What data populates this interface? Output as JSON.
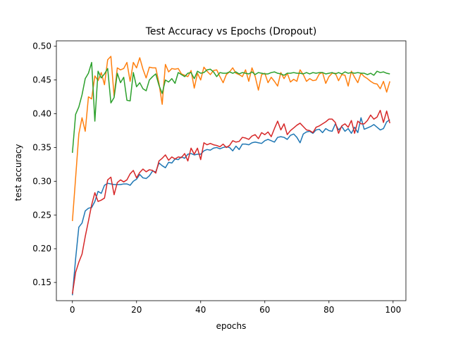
{
  "chart_data": {
    "type": "line",
    "title": "Test Accuracy vs Epochs (Dropout)",
    "xlabel": "epochs",
    "ylabel": "test accuracy",
    "xlim": [
      -5,
      104
    ],
    "ylim": [
      0.123,
      0.508
    ],
    "xticks": [
      0,
      20,
      40,
      60,
      80,
      100
    ],
    "yticks": [
      0.15,
      0.2,
      0.25,
      0.3,
      0.35,
      0.4,
      0.45,
      0.5
    ],
    "ytick_labels": [
      "0.15",
      "0.20",
      "0.25",
      "0.30",
      "0.35",
      "0.40",
      "0.45",
      "0.50"
    ],
    "grid": false,
    "legend": "none",
    "series": [
      {
        "color": "#1f77b4",
        "values": [
          0.131,
          0.185,
          0.232,
          0.238,
          0.256,
          0.26,
          0.261,
          0.27,
          0.285,
          0.282,
          0.294,
          0.297,
          0.296,
          0.295,
          0.295,
          0.295,
          0.296,
          0.296,
          0.294,
          0.3,
          0.303,
          0.31,
          0.305,
          0.304,
          0.308,
          0.315,
          0.314,
          0.327,
          0.323,
          0.32,
          0.328,
          0.327,
          0.333,
          0.332,
          0.336,
          0.334,
          0.34,
          0.341,
          0.339,
          0.34,
          0.34,
          0.345,
          0.347,
          0.346,
          0.349,
          0.35,
          0.348,
          0.35,
          0.351,
          0.35,
          0.345,
          0.352,
          0.347,
          0.355,
          0.355,
          0.354,
          0.357,
          0.358,
          0.357,
          0.356,
          0.36,
          0.362,
          0.36,
          0.358,
          0.365,
          0.366,
          0.365,
          0.362,
          0.368,
          0.37,
          0.365,
          0.357,
          0.37,
          0.373,
          0.374,
          0.371,
          0.376,
          0.377,
          0.372,
          0.378,
          0.375,
          0.374,
          0.385,
          0.376,
          0.381,
          0.374,
          0.378,
          0.371,
          0.38,
          0.372,
          0.394,
          0.377,
          0.379,
          0.381,
          0.384,
          0.38,
          0.376,
          0.378,
          0.388,
          0.391
        ]
      },
      {
        "color": "#ff7f0e",
        "values": [
          0.241,
          0.305,
          0.37,
          0.394,
          0.374,
          0.425,
          0.422,
          0.456,
          0.449,
          0.461,
          0.443,
          0.48,
          0.485,
          0.426,
          0.468,
          0.465,
          0.467,
          0.476,
          0.448,
          0.476,
          0.468,
          0.483,
          0.466,
          0.453,
          0.469,
          0.468,
          0.468,
          0.445,
          0.414,
          0.473,
          0.462,
          0.467,
          0.466,
          0.467,
          0.459,
          0.457,
          0.455,
          0.464,
          0.438,
          0.46,
          0.45,
          0.469,
          0.463,
          0.458,
          0.464,
          0.465,
          0.455,
          0.446,
          0.458,
          0.462,
          0.468,
          0.46,
          0.458,
          0.455,
          0.465,
          0.448,
          0.468,
          0.455,
          0.435,
          0.458,
          0.46,
          0.446,
          0.454,
          0.448,
          0.441,
          0.461,
          0.452,
          0.46,
          0.447,
          0.451,
          0.448,
          0.465,
          0.458,
          0.448,
          0.452,
          0.449,
          0.45,
          0.459,
          0.461,
          0.445,
          0.455,
          0.46,
          0.46,
          0.449,
          0.458,
          0.457,
          0.441,
          0.463,
          0.454,
          0.446,
          0.46,
          0.455,
          0.452,
          0.448,
          0.445,
          0.444,
          0.437,
          0.448,
          0.432,
          0.448
        ]
      },
      {
        "color": "#2ca02c",
        "values": [
          0.342,
          0.399,
          0.41,
          0.428,
          0.452,
          0.46,
          0.476,
          0.389,
          0.463,
          0.453,
          0.459,
          0.467,
          0.416,
          0.424,
          0.46,
          0.446,
          0.454,
          0.42,
          0.419,
          0.461,
          0.44,
          0.446,
          0.437,
          0.434,
          0.45,
          0.455,
          0.459,
          0.442,
          0.43,
          0.45,
          0.447,
          0.452,
          0.445,
          0.461,
          0.458,
          0.455,
          0.46,
          0.461,
          0.452,
          0.463,
          0.46,
          0.461,
          0.465,
          0.466,
          0.462,
          0.455,
          0.461,
          0.46,
          0.46,
          0.462,
          0.46,
          0.462,
          0.459,
          0.461,
          0.46,
          0.459,
          0.462,
          0.458,
          0.461,
          0.46,
          0.459,
          0.459,
          0.461,
          0.462,
          0.46,
          0.459,
          0.457,
          0.46,
          0.46,
          0.461,
          0.46,
          0.46,
          0.459,
          0.461,
          0.459,
          0.461,
          0.46,
          0.461,
          0.461,
          0.459,
          0.46,
          0.461,
          0.459,
          0.461,
          0.459,
          0.462,
          0.46,
          0.461,
          0.46,
          0.461,
          0.46,
          0.46,
          0.458,
          0.46,
          0.457,
          0.463,
          0.461,
          0.462,
          0.46,
          0.459
        ]
      },
      {
        "color": "#d62728",
        "values": [
          0.133,
          0.165,
          0.18,
          0.192,
          0.218,
          0.241,
          0.265,
          0.283,
          0.27,
          0.272,
          0.275,
          0.302,
          0.306,
          0.28,
          0.298,
          0.302,
          0.299,
          0.302,
          0.311,
          0.316,
          0.305,
          0.313,
          0.318,
          0.314,
          0.317,
          0.316,
          0.312,
          0.33,
          0.334,
          0.339,
          0.331,
          0.336,
          0.333,
          0.336,
          0.335,
          0.341,
          0.33,
          0.349,
          0.34,
          0.349,
          0.332,
          0.357,
          0.354,
          0.356,
          0.354,
          0.353,
          0.351,
          0.355,
          0.35,
          0.353,
          0.36,
          0.358,
          0.359,
          0.365,
          0.364,
          0.362,
          0.367,
          0.369,
          0.363,
          0.372,
          0.369,
          0.373,
          0.366,
          0.378,
          0.389,
          0.376,
          0.385,
          0.369,
          0.375,
          0.379,
          0.383,
          0.386,
          0.381,
          0.376,
          0.375,
          0.372,
          0.38,
          0.382,
          0.385,
          0.388,
          0.392,
          0.392,
          0.387,
          0.371,
          0.382,
          0.385,
          0.38,
          0.39,
          0.371,
          0.389,
          0.385,
          0.385,
          0.39,
          0.398,
          0.392,
          0.395,
          0.405,
          0.387,
          0.404,
          0.386
        ]
      }
    ]
  }
}
